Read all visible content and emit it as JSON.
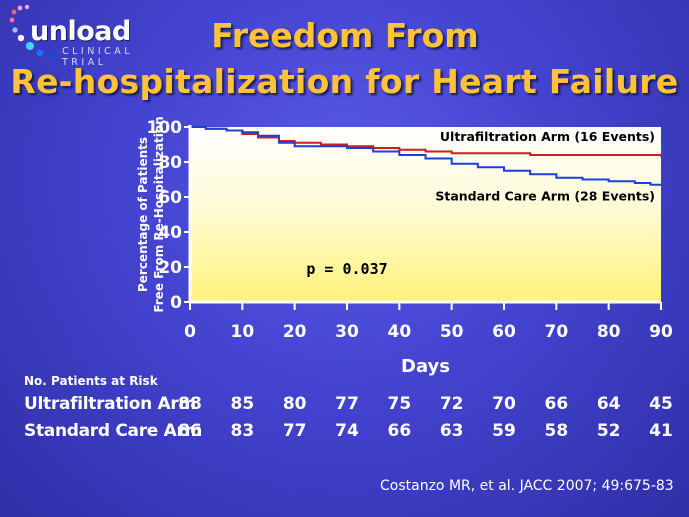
{
  "logo": {
    "word": "unload",
    "subtitle": "CLINICAL TRIAL"
  },
  "title": {
    "line1": "Freedom From",
    "line2": "Re-hospitalization for Heart Failure"
  },
  "chart_data": {
    "type": "line",
    "title": "Freedom From Re-hospitalization for Heart Failure",
    "xlabel": "Days",
    "ylabel_line1": "Percentage of Patients",
    "ylabel_line2": "Free From Re-Hospitalization",
    "xlim": [
      0,
      90
    ],
    "ylim": [
      0,
      100
    ],
    "xticks": [
      0,
      10,
      20,
      30,
      40,
      50,
      60,
      70,
      80,
      90
    ],
    "yticks": [
      0,
      20,
      40,
      60,
      80,
      100
    ],
    "annotation": "p = 0.037",
    "series": [
      {
        "name": "Ultrafiltration Arm (16 Events)",
        "color": "#cc1f1f",
        "x": [
          0,
          3,
          7,
          10,
          13,
          17,
          20,
          25,
          30,
          35,
          40,
          45,
          50,
          55,
          60,
          65,
          70,
          75,
          80,
          85,
          88,
          90
        ],
        "y": [
          100,
          99,
          98,
          96,
          94,
          92,
          91,
          90,
          89,
          88,
          87,
          86,
          85,
          85,
          85,
          84,
          84,
          84,
          84,
          84,
          84,
          83
        ]
      },
      {
        "name": "Standard Care Arm (28 Events)",
        "color": "#1f3fd6",
        "x": [
          0,
          3,
          7,
          10,
          13,
          17,
          20,
          25,
          30,
          35,
          40,
          45,
          50,
          55,
          60,
          65,
          70,
          75,
          80,
          85,
          88,
          90
        ],
        "y": [
          100,
          99,
          98,
          97,
          95,
          91,
          89,
          89,
          88,
          86,
          84,
          82,
          79,
          77,
          75,
          73,
          71,
          70,
          69,
          68,
          67,
          67
        ]
      }
    ]
  },
  "risk_table": {
    "title": "No. Patients at Risk",
    "rows": [
      {
        "label": "Ultrafiltration Arm",
        "values": [
          "88",
          "85",
          "80",
          "77",
          "75",
          "72",
          "70",
          "66",
          "64",
          "45"
        ]
      },
      {
        "label": "Standard Care Arm",
        "values": [
          "86",
          "83",
          "77",
          "74",
          "66",
          "63",
          "59",
          "58",
          "52",
          "41"
        ]
      }
    ]
  },
  "citation": "Costanzo MR, et al. JACC 2007; 49:675-83"
}
